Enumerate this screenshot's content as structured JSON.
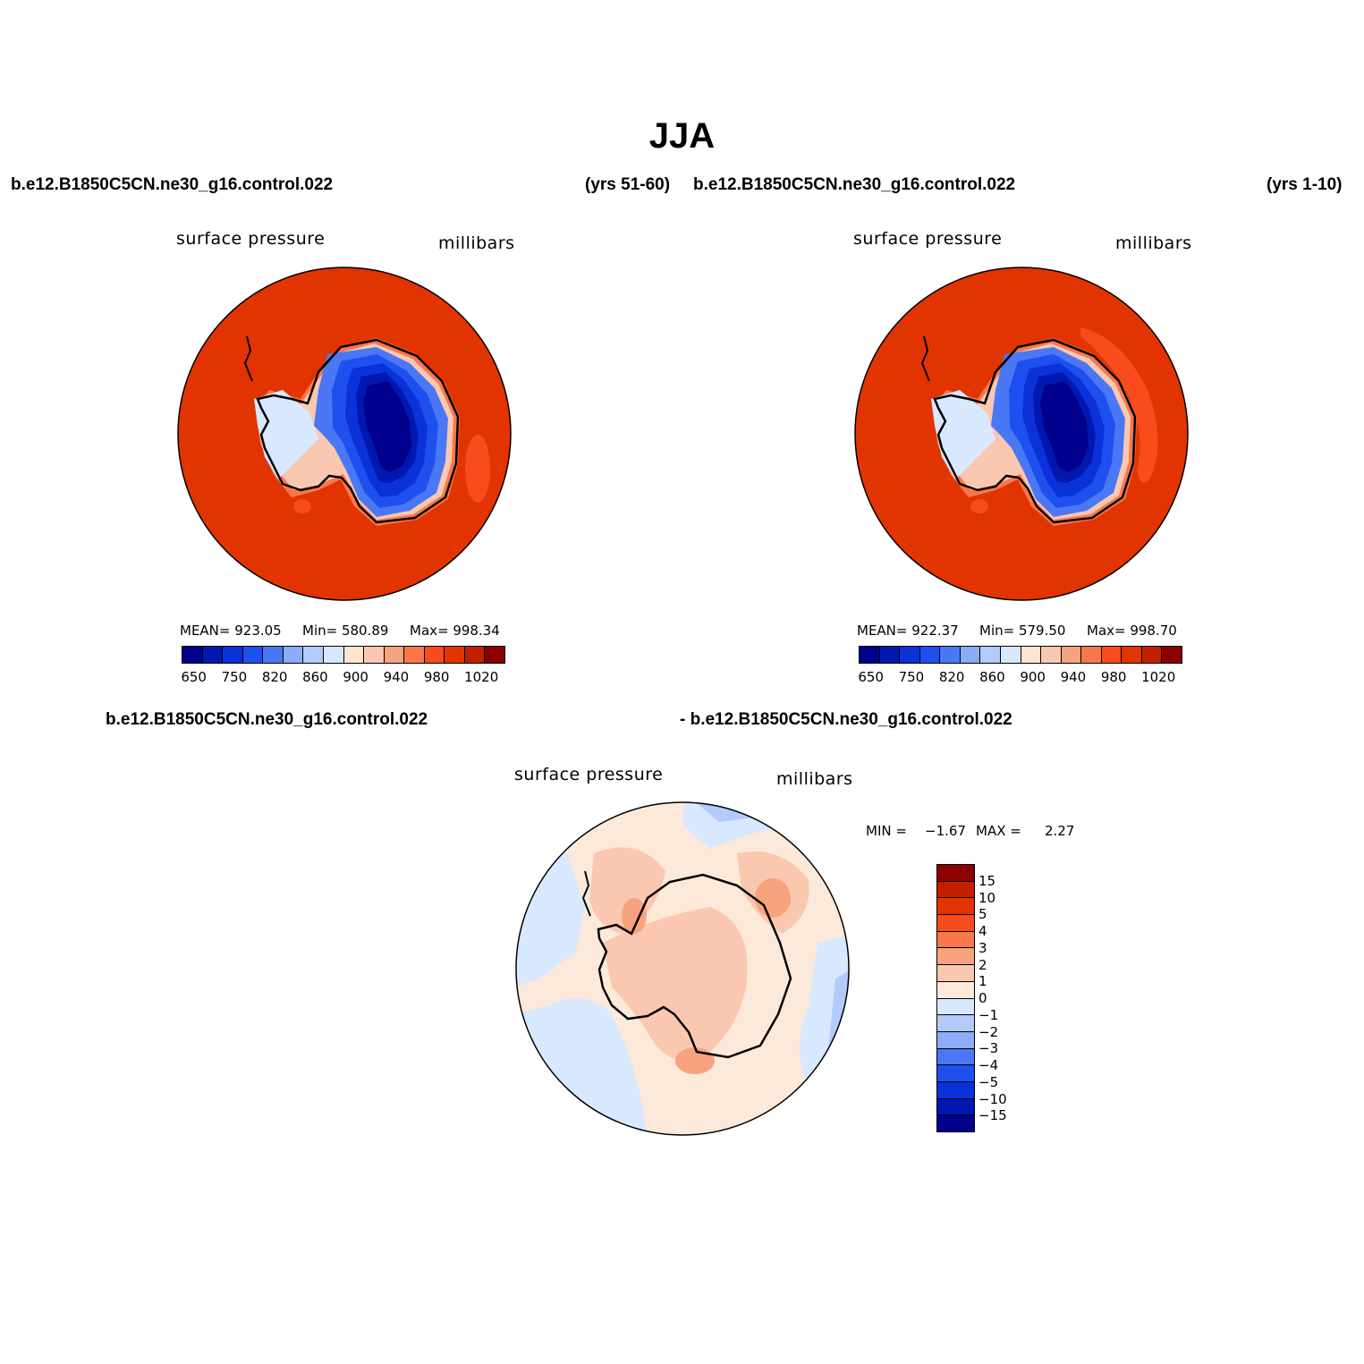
{
  "title": "JJA",
  "panel_left": {
    "case": "b.e12.B1850C5CN.ne30_g16.control.022",
    "years": "(yrs 51-60)",
    "variable": "surface pressure",
    "units": "millibars",
    "stats": {
      "mean": "MEAN= 923.05",
      "min": "Min= 580.89",
      "max": "Max= 998.34"
    }
  },
  "panel_right": {
    "case": "b.e12.B1850C5CN.ne30_g16.control.022",
    "years": "(yrs 1-10)",
    "variable": "surface pressure",
    "units": "millibars",
    "stats": {
      "mean": "MEAN= 922.37",
      "min": "Min= 579.50",
      "max": "Max= 998.70"
    }
  },
  "panel_diff": {
    "case_a": "b.e12.B1850C5CN.ne30_g16.control.022",
    "case_b": "- b.e12.B1850C5CN.ne30_g16.control.022",
    "variable": "surface pressure",
    "units": "millibars",
    "min_label": "MIN =",
    "min_value": "−1.67",
    "max_label": "MAX =",
    "max_value": "2.27"
  },
  "abs_colorbar": {
    "colors": [
      "#00008c",
      "#0018b0",
      "#0a32d8",
      "#1e50f0",
      "#4a78f5",
      "#8cacf8",
      "#b4cafb",
      "#d8e8ff",
      "#fde5d2",
      "#fac8b0",
      "#f8a37f",
      "#f8784c",
      "#f84c1c",
      "#e23400",
      "#c21f00",
      "#8c0000"
    ],
    "labels": [
      "650",
      "750",
      "820",
      "860",
      "900",
      "940",
      "980",
      "1020"
    ]
  },
  "diff_colorbar": {
    "colors": [
      "#8c0000",
      "#c21f00",
      "#e23400",
      "#f84c1c",
      "#f8784c",
      "#f8a37f",
      "#fac8b0",
      "#fde9d9",
      "#d8e8ff",
      "#b4cafb",
      "#8cacf8",
      "#4a78f5",
      "#1e50f0",
      "#0a32d8",
      "#0018b0",
      "#00008c"
    ],
    "labels": [
      "15",
      "10",
      "5",
      "4",
      "3",
      "2",
      "1",
      "0",
      "−1",
      "−2",
      "−3",
      "−4",
      "−5",
      "−10",
      "−15"
    ]
  }
}
